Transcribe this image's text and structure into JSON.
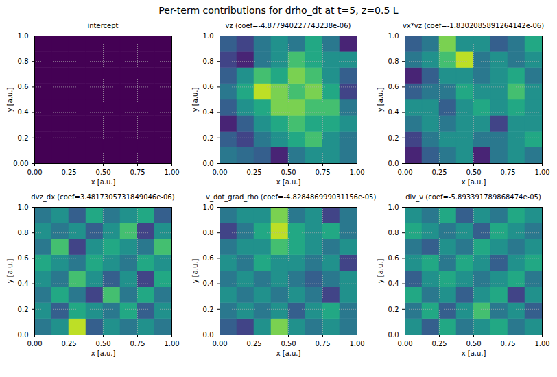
{
  "title": "Per-term contributions for drho_dt at t=5, z=0.5 L",
  "chart_data": [
    {
      "type": "heatmap",
      "title": "intercept",
      "x_label": "x [a.u.]",
      "y_label": "y [a.u.]",
      "xlim": [
        0,
        1
      ],
      "ylim": [
        0,
        1
      ],
      "xticks": [
        {
          "value": 0,
          "label": "0.00"
        },
        {
          "value": 0.25,
          "label": "0.25"
        },
        {
          "value": 0.5,
          "label": "0.50"
        },
        {
          "value": 0.75,
          "label": "0.75"
        },
        {
          "value": 1,
          "label": "1.00"
        }
      ],
      "yticks": [
        {
          "value": 0,
          "label": "0.00"
        },
        {
          "value": 0.2,
          "label": "0.2"
        },
        {
          "value": 0.4,
          "label": "0.4"
        },
        {
          "value": 0.6,
          "label": "0.6"
        },
        {
          "value": 0.8,
          "label": "0.8"
        },
        {
          "value": 1,
          "label": "1.0"
        }
      ],
      "grid": true,
      "zlim": [
        0,
        1
      ],
      "cells": [
        [
          0,
          0,
          0,
          0,
          0,
          0,
          0,
          0
        ],
        [
          0,
          0,
          0,
          0,
          0,
          0,
          0,
          0
        ],
        [
          0,
          0,
          0,
          0,
          0,
          0,
          0,
          0
        ],
        [
          0,
          0,
          0,
          0,
          0,
          0,
          0,
          0
        ],
        [
          0,
          0,
          0,
          0,
          0,
          0,
          0,
          0
        ],
        [
          0,
          0,
          0,
          0,
          0,
          0,
          0,
          0
        ],
        [
          0,
          0,
          0,
          0,
          0,
          0,
          0,
          0
        ],
        [
          0,
          0,
          0,
          0,
          0,
          0,
          0,
          0
        ]
      ]
    },
    {
      "type": "heatmap",
      "title": "vz (coef=-4.877940227743238e-06)",
      "x_label": "x [a.u.]",
      "y_label": "y [a.u.]",
      "xlim": [
        0,
        1
      ],
      "ylim": [
        0,
        1
      ],
      "xticks": [
        {
          "value": 0,
          "label": "0.00"
        },
        {
          "value": 0.25,
          "label": "0.25"
        },
        {
          "value": 0.5,
          "label": "0.50"
        },
        {
          "value": 0.75,
          "label": "0.75"
        },
        {
          "value": 1,
          "label": "1.00"
        }
      ],
      "yticks": [
        {
          "value": 0,
          "label": "0.0"
        },
        {
          "value": 0.2,
          "label": "0.2"
        },
        {
          "value": 0.4,
          "label": "0.4"
        },
        {
          "value": 0.6,
          "label": "0.6"
        },
        {
          "value": 0.8,
          "label": "0.8"
        },
        {
          "value": 1,
          "label": "1.0"
        }
      ],
      "grid": true,
      "zlim": [
        0,
        1
      ],
      "cells": [
        [
          0.4,
          0.35,
          0.3,
          0.1,
          0.4,
          0.5,
          0.5,
          0.4
        ],
        [
          0.3,
          0.2,
          0.4,
          0.5,
          0.6,
          0.7,
          0.5,
          0.4
        ],
        [
          0.1,
          0.3,
          0.5,
          0.6,
          0.7,
          0.6,
          0.6,
          0.5
        ],
        [
          0.3,
          0.5,
          0.6,
          0.8,
          0.8,
          0.7,
          0.7,
          0.4
        ],
        [
          0.4,
          0.6,
          0.9,
          0.8,
          0.7,
          0.8,
          0.6,
          0.2
        ],
        [
          0.3,
          0.5,
          0.7,
          0.6,
          0.8,
          0.7,
          0.5,
          0.3
        ],
        [
          0.2,
          0.1,
          0.4,
          0.5,
          0.7,
          0.6,
          0.5,
          0.5
        ],
        [
          0.3,
          0.2,
          0.4,
          0.5,
          0.4,
          0.6,
          0.4,
          0.1
        ]
      ]
    },
    {
      "type": "heatmap",
      "title": "vx*vz (coef=-1.8302085891264142e-06)",
      "x_label": "x [a.u.]",
      "y_label": "y [a.u.]",
      "xlim": [
        0,
        1
      ],
      "ylim": [
        0,
        1
      ],
      "xticks": [
        {
          "value": 0,
          "label": "0.00"
        },
        {
          "value": 0.25,
          "label": "0.25"
        },
        {
          "value": 0.5,
          "label": "0.50"
        },
        {
          "value": 0.75,
          "label": "0.75"
        },
        {
          "value": 1,
          "label": "1.00"
        }
      ],
      "yticks": [
        {
          "value": 0,
          "label": "0.0"
        },
        {
          "value": 0.2,
          "label": "0.2"
        },
        {
          "value": 0.4,
          "label": "0.4"
        },
        {
          "value": 0.6,
          "label": "0.6"
        },
        {
          "value": 0.8,
          "label": "0.8"
        },
        {
          "value": 1,
          "label": "1.0"
        }
      ],
      "grid": true,
      "zlim": [
        0,
        1
      ],
      "cells": [
        [
          0.1,
          0.3,
          0.4,
          0.5,
          0.1,
          0.4,
          0.5,
          0.4
        ],
        [
          0.2,
          0.4,
          0.5,
          0.5,
          0.4,
          0.4,
          0.5,
          0.6
        ],
        [
          0.4,
          0.5,
          0.4,
          0.5,
          0.5,
          0.2,
          0.5,
          0.5
        ],
        [
          0.5,
          0.5,
          0.3,
          0.5,
          0.6,
          0.5,
          0.6,
          0.5
        ],
        [
          0.3,
          0.4,
          0.4,
          0.6,
          0.5,
          0.5,
          0.7,
          0.5
        ],
        [
          0.1,
          0.3,
          0.5,
          0.5,
          0.4,
          0.5,
          0.6,
          0.4
        ],
        [
          0.4,
          0.5,
          0.7,
          0.9,
          0.4,
          0.5,
          0.4,
          0.5
        ],
        [
          0.3,
          0.4,
          0.8,
          0.5,
          0.5,
          0.3,
          0.4,
          0.6
        ]
      ]
    },
    {
      "type": "heatmap",
      "title": "dvz_dx (coef=3.4817305731849046e-06)",
      "x_label": "x [a.u.]",
      "y_label": "y [a.u.]",
      "xlim": [
        0,
        1
      ],
      "ylim": [
        0,
        1
      ],
      "xticks": [
        {
          "value": 0,
          "label": "0.00"
        },
        {
          "value": 0.25,
          "label": "0.25"
        },
        {
          "value": 0.5,
          "label": "0.50"
        },
        {
          "value": 0.75,
          "label": "0.75"
        },
        {
          "value": 1,
          "label": "1.00"
        }
      ],
      "yticks": [
        {
          "value": 0,
          "label": "0.0"
        },
        {
          "value": 0.2,
          "label": "0.2"
        },
        {
          "value": 0.4,
          "label": "0.4"
        },
        {
          "value": 0.6,
          "label": "0.6"
        },
        {
          "value": 0.8,
          "label": "0.8"
        },
        {
          "value": 1,
          "label": "1.0"
        }
      ],
      "grid": true,
      "zlim": [
        0,
        1
      ],
      "cells": [
        [
          0.4,
          0.5,
          0.9,
          0.3,
          0.5,
          0.4,
          0.5,
          0.4
        ],
        [
          0.5,
          0.3,
          0.6,
          0.5,
          0.4,
          0.6,
          0.3,
          0.5
        ],
        [
          0.4,
          0.6,
          0.4,
          0.2,
          0.7,
          0.4,
          0.6,
          0.4
        ],
        [
          0.5,
          0.4,
          0.7,
          0.5,
          0.3,
          0.5,
          0.2,
          0.6
        ],
        [
          0.6,
          0.5,
          0.4,
          0.6,
          0.5,
          0.4,
          0.6,
          0.5
        ],
        [
          0.4,
          0.7,
          0.2,
          0.5,
          0.6,
          0.5,
          0.4,
          0.7
        ],
        [
          0.5,
          0.4,
          0.5,
          0.3,
          0.5,
          0.7,
          0.2,
          0.5
        ],
        [
          0.4,
          0.5,
          0.3,
          0.6,
          0.4,
          0.5,
          0.6,
          0.3
        ]
      ]
    },
    {
      "type": "heatmap",
      "title": "v_dot_grad_rho (coef=-4.828486999031156e-05)",
      "x_label": "x [a.u.]",
      "y_label": "y [a.u.]",
      "xlim": [
        0,
        1
      ],
      "ylim": [
        0,
        1
      ],
      "xticks": [
        {
          "value": 0,
          "label": "0.00"
        },
        {
          "value": 0.25,
          "label": "0.25"
        },
        {
          "value": 0.5,
          "label": "0.50"
        },
        {
          "value": 0.75,
          "label": "0.75"
        },
        {
          "value": 1,
          "label": "1.00"
        }
      ],
      "yticks": [
        {
          "value": 0,
          "label": "0.0"
        },
        {
          "value": 0.2,
          "label": "0.2"
        },
        {
          "value": 0.4,
          "label": "0.4"
        },
        {
          "value": 0.6,
          "label": "0.6"
        },
        {
          "value": 0.8,
          "label": "0.8"
        },
        {
          "value": 1,
          "label": "1.0"
        }
      ],
      "grid": true,
      "zlim": [
        0,
        1
      ],
      "cells": [
        [
          0.3,
          0.2,
          0.5,
          0.8,
          0.5,
          0.4,
          0.5,
          0.4
        ],
        [
          0.4,
          0.5,
          0.4,
          0.5,
          0.3,
          0.5,
          0.6,
          0.4
        ],
        [
          0.5,
          0.4,
          0.5,
          0.4,
          0.5,
          0.4,
          0.2,
          0.5
        ],
        [
          0.4,
          0.5,
          0.4,
          0.5,
          0.4,
          0.3,
          0.4,
          0.5
        ],
        [
          0.5,
          0.4,
          0.6,
          0.5,
          0.5,
          0.4,
          0.5,
          0.2
        ],
        [
          0.4,
          0.5,
          0.5,
          0.7,
          0.6,
          0.5,
          0.4,
          0.5
        ],
        [
          0.2,
          0.4,
          0.6,
          0.9,
          0.6,
          0.5,
          0.6,
          0.4
        ],
        [
          0.4,
          0.5,
          0.5,
          0.8,
          0.4,
          0.5,
          0.2,
          0.4
        ]
      ]
    },
    {
      "type": "heatmap",
      "title": "div_v (coef=-5.893391789868474e-05)",
      "x_label": "x [a.u.]",
      "y_label": "y [a.u.]",
      "xlim": [
        0,
        1
      ],
      "ylim": [
        0,
        1
      ],
      "xticks": [
        {
          "value": 0,
          "label": "0.00"
        },
        {
          "value": 0.25,
          "label": "0.25"
        },
        {
          "value": 0.5,
          "label": "0.50"
        },
        {
          "value": 0.75,
          "label": "0.75"
        },
        {
          "value": 1,
          "label": "1.00"
        }
      ],
      "yticks": [
        {
          "value": 0,
          "label": "0.0"
        },
        {
          "value": 0.2,
          "label": "0.2"
        },
        {
          "value": 0.4,
          "label": "0.4"
        },
        {
          "value": 0.6,
          "label": "0.6"
        },
        {
          "value": 0.8,
          "label": "0.8"
        },
        {
          "value": 1,
          "label": "1.0"
        }
      ],
      "grid": true,
      "zlim": [
        0,
        1
      ],
      "cells": [
        [
          0.5,
          0.3,
          0.6,
          0.4,
          0.5,
          0.6,
          0.4,
          0.5
        ],
        [
          0.4,
          0.6,
          0.3,
          0.5,
          0.7,
          0.4,
          0.5,
          0.3
        ],
        [
          0.6,
          0.4,
          0.5,
          0.3,
          0.5,
          0.6,
          0.2,
          0.5
        ],
        [
          0.3,
          0.5,
          0.6,
          0.5,
          0.4,
          0.5,
          0.6,
          0.4
        ],
        [
          0.5,
          0.6,
          0.4,
          0.6,
          0.5,
          0.3,
          0.5,
          0.6
        ],
        [
          0.4,
          0.3,
          0.5,
          0.4,
          0.6,
          0.5,
          0.4,
          0.5
        ],
        [
          0.6,
          0.5,
          0.4,
          0.5,
          0.3,
          0.6,
          0.5,
          0.4
        ],
        [
          0.5,
          0.4,
          0.6,
          0.3,
          0.5,
          0.4,
          0.6,
          0.5
        ]
      ]
    }
  ]
}
